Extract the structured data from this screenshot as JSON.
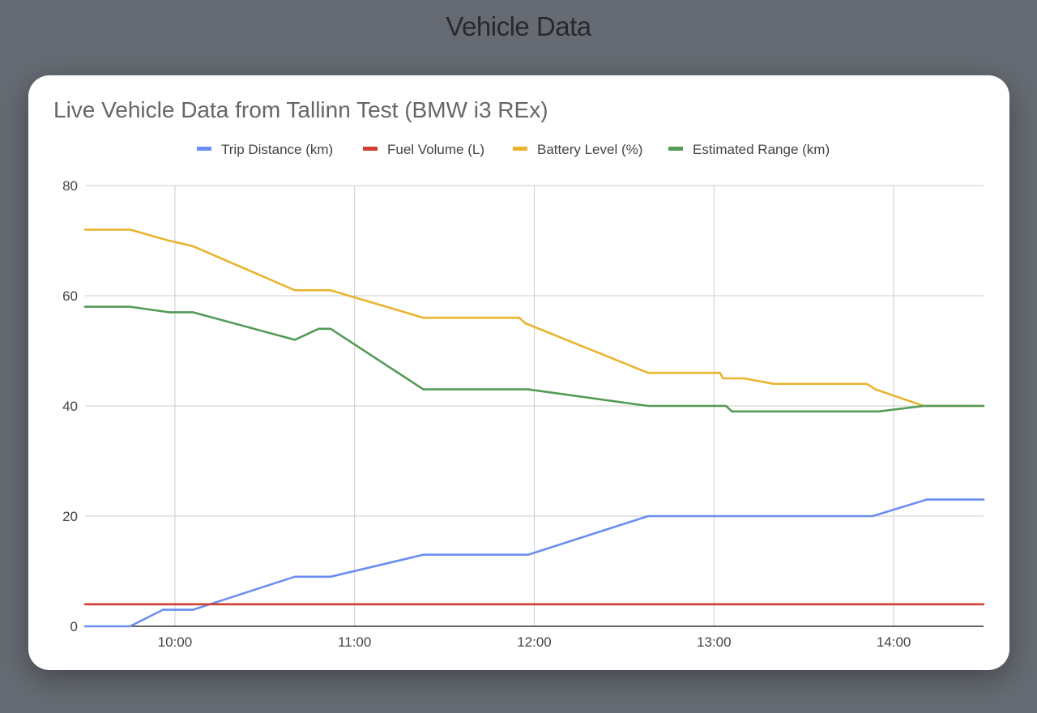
{
  "page": {
    "title": "Vehicle Data"
  },
  "chart_data": {
    "type": "line",
    "title": "Live Vehicle Data from Tallinn Test (BMW i3 REx)",
    "xlabel": "",
    "ylabel": "",
    "x_ticks": [
      "10:00",
      "11:00",
      "12:00",
      "13:00",
      "14:00"
    ],
    "y_ticks": [
      "0",
      "20",
      "40",
      "60",
      "80"
    ],
    "xlim": [
      "09:30",
      "14:30"
    ],
    "ylim": [
      0,
      80
    ],
    "grid": true,
    "legend_position": "top",
    "series": [
      {
        "name": "Trip Distance (km)",
        "color": "#6a8ff0",
        "points": [
          [
            "09:30",
            0
          ],
          [
            "09:45",
            0
          ],
          [
            "09:56",
            3
          ],
          [
            "10:06",
            3
          ],
          [
            "10:40",
            9
          ],
          [
            "10:52",
            9
          ],
          [
            "11:23",
            13
          ],
          [
            "11:58",
            13
          ],
          [
            "12:38",
            20
          ],
          [
            "13:53",
            20
          ],
          [
            "14:11",
            23
          ],
          [
            "14:30",
            23
          ]
        ]
      },
      {
        "name": "Fuel Volume (L)",
        "color": "#cf3f31",
        "points": [
          [
            "09:30",
            4
          ],
          [
            "14:30",
            4
          ]
        ]
      },
      {
        "name": "Battery Level (%)",
        "color": "#e9b430",
        "points": [
          [
            "09:30",
            72
          ],
          [
            "09:45",
            72
          ],
          [
            "09:58",
            70
          ],
          [
            "10:06",
            69
          ],
          [
            "10:40",
            61
          ],
          [
            "10:52",
            61
          ],
          [
            "11:23",
            56
          ],
          [
            "11:55",
            56
          ],
          [
            "11:57",
            55
          ],
          [
            "12:38",
            46
          ],
          [
            "13:02",
            46
          ],
          [
            "13:03",
            45
          ],
          [
            "13:10",
            45
          ],
          [
            "13:20",
            44
          ],
          [
            "13:51",
            44
          ],
          [
            "13:54",
            43
          ],
          [
            "14:10",
            40
          ],
          [
            "14:30",
            40
          ]
        ]
      },
      {
        "name": "Estimated Range (km)",
        "color": "#559a57",
        "points": [
          [
            "09:30",
            58
          ],
          [
            "09:45",
            58
          ],
          [
            "09:58",
            57
          ],
          [
            "10:06",
            57
          ],
          [
            "10:40",
            52
          ],
          [
            "10:48",
            54
          ],
          [
            "10:52",
            54
          ],
          [
            "11:23",
            43
          ],
          [
            "11:58",
            43
          ],
          [
            "12:38",
            40
          ],
          [
            "13:04",
            40
          ],
          [
            "13:06",
            39
          ],
          [
            "13:55",
            39
          ],
          [
            "14:10",
            40
          ],
          [
            "14:30",
            40
          ]
        ]
      }
    ]
  }
}
